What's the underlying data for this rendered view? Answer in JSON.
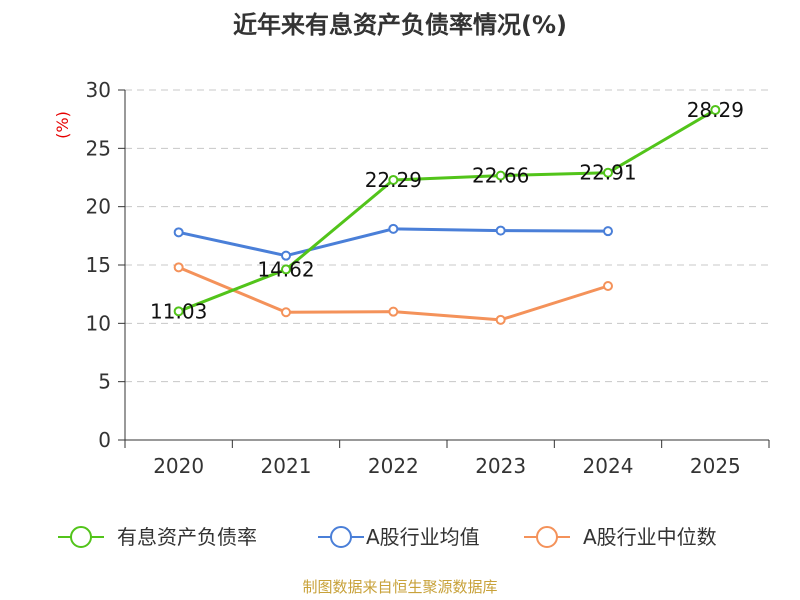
{
  "chart_data": {
    "type": "line",
    "title": "近年来有息资产负债率情况(%)",
    "ylabel": "(%)",
    "xlabel": "",
    "categories": [
      "2020",
      "2021",
      "2022",
      "2023",
      "2024",
      "2025"
    ],
    "ylim": [
      0,
      30
    ],
    "yticks": [
      "0",
      "5",
      "10",
      "15",
      "20",
      "25",
      "30"
    ],
    "grid": true,
    "legend": "bottom",
    "series": [
      {
        "name": "有息资产负债率",
        "color": "#52c41a",
        "values": [
          11.03,
          14.62,
          22.29,
          22.66,
          22.91,
          28.29
        ],
        "labels": [
          "11.03",
          "14.62",
          "22.29",
          "22.66",
          "22.91",
          "28.29"
        ]
      },
      {
        "name": "A股行业均值",
        "color": "#4a7fd8",
        "values": [
          17.8,
          15.8,
          18.1,
          17.95,
          17.9,
          null
        ],
        "labels": []
      },
      {
        "name": "A股行业中位数",
        "color": "#f4925a",
        "values": [
          14.8,
          10.95,
          11.0,
          10.3,
          13.2,
          null
        ],
        "labels": []
      }
    ],
    "source": "制图数据来自恒生聚源数据库"
  }
}
